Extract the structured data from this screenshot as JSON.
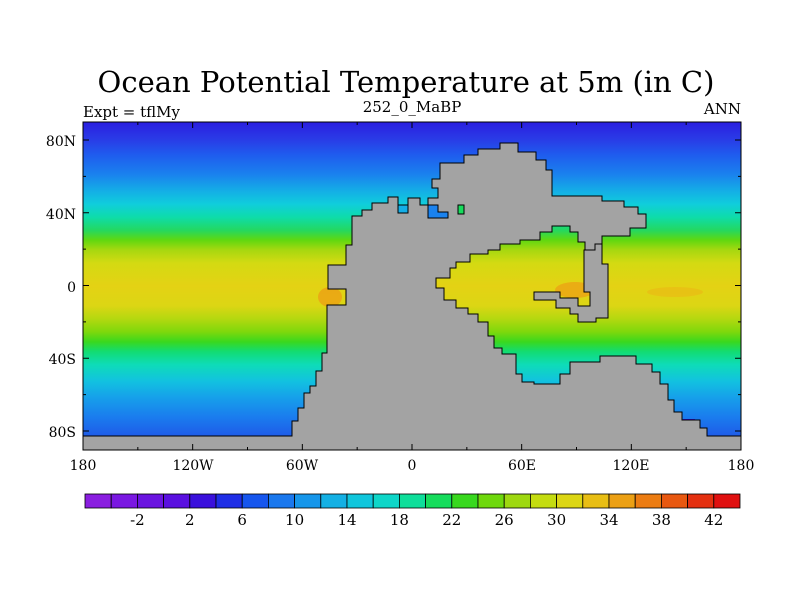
{
  "title": "Ocean Potential Temperature at 5m (in C)",
  "subtitle_left": "Expt = tflMy",
  "subtitle_center": "252_0_MaBP",
  "subtitle_right": "ANN",
  "lat_labels": [
    "80N",
    "40N",
    "0",
    "40S",
    "80S"
  ],
  "lon_labels": [
    "180",
    "120W",
    "60W",
    "0",
    "60E",
    "120E",
    "180"
  ],
  "colorbar": {
    "labels": [
      "-2",
      "2",
      "6",
      "10",
      "14",
      "18",
      "22",
      "26",
      "30",
      "34",
      "38",
      "42"
    ],
    "colors": [
      "#8a1ee0",
      "#7a18e2",
      "#6a14e0",
      "#5a10e0",
      "#3a10dc",
      "#1f2ee6",
      "#1656ee",
      "#1a78ee",
      "#1696ea",
      "#14b0e4",
      "#10c6dc",
      "#0ed6c8",
      "#0ede9a",
      "#16dc5c",
      "#38d81e",
      "#6ed80c",
      "#9ed810",
      "#c4dc10",
      "#dcd614",
      "#e8be14",
      "#eca014",
      "#ec7c12",
      "#e85810",
      "#e43010",
      "#e01010"
    ]
  },
  "colors": {
    "land": "#a3a3a3",
    "coast": "#000000"
  }
}
